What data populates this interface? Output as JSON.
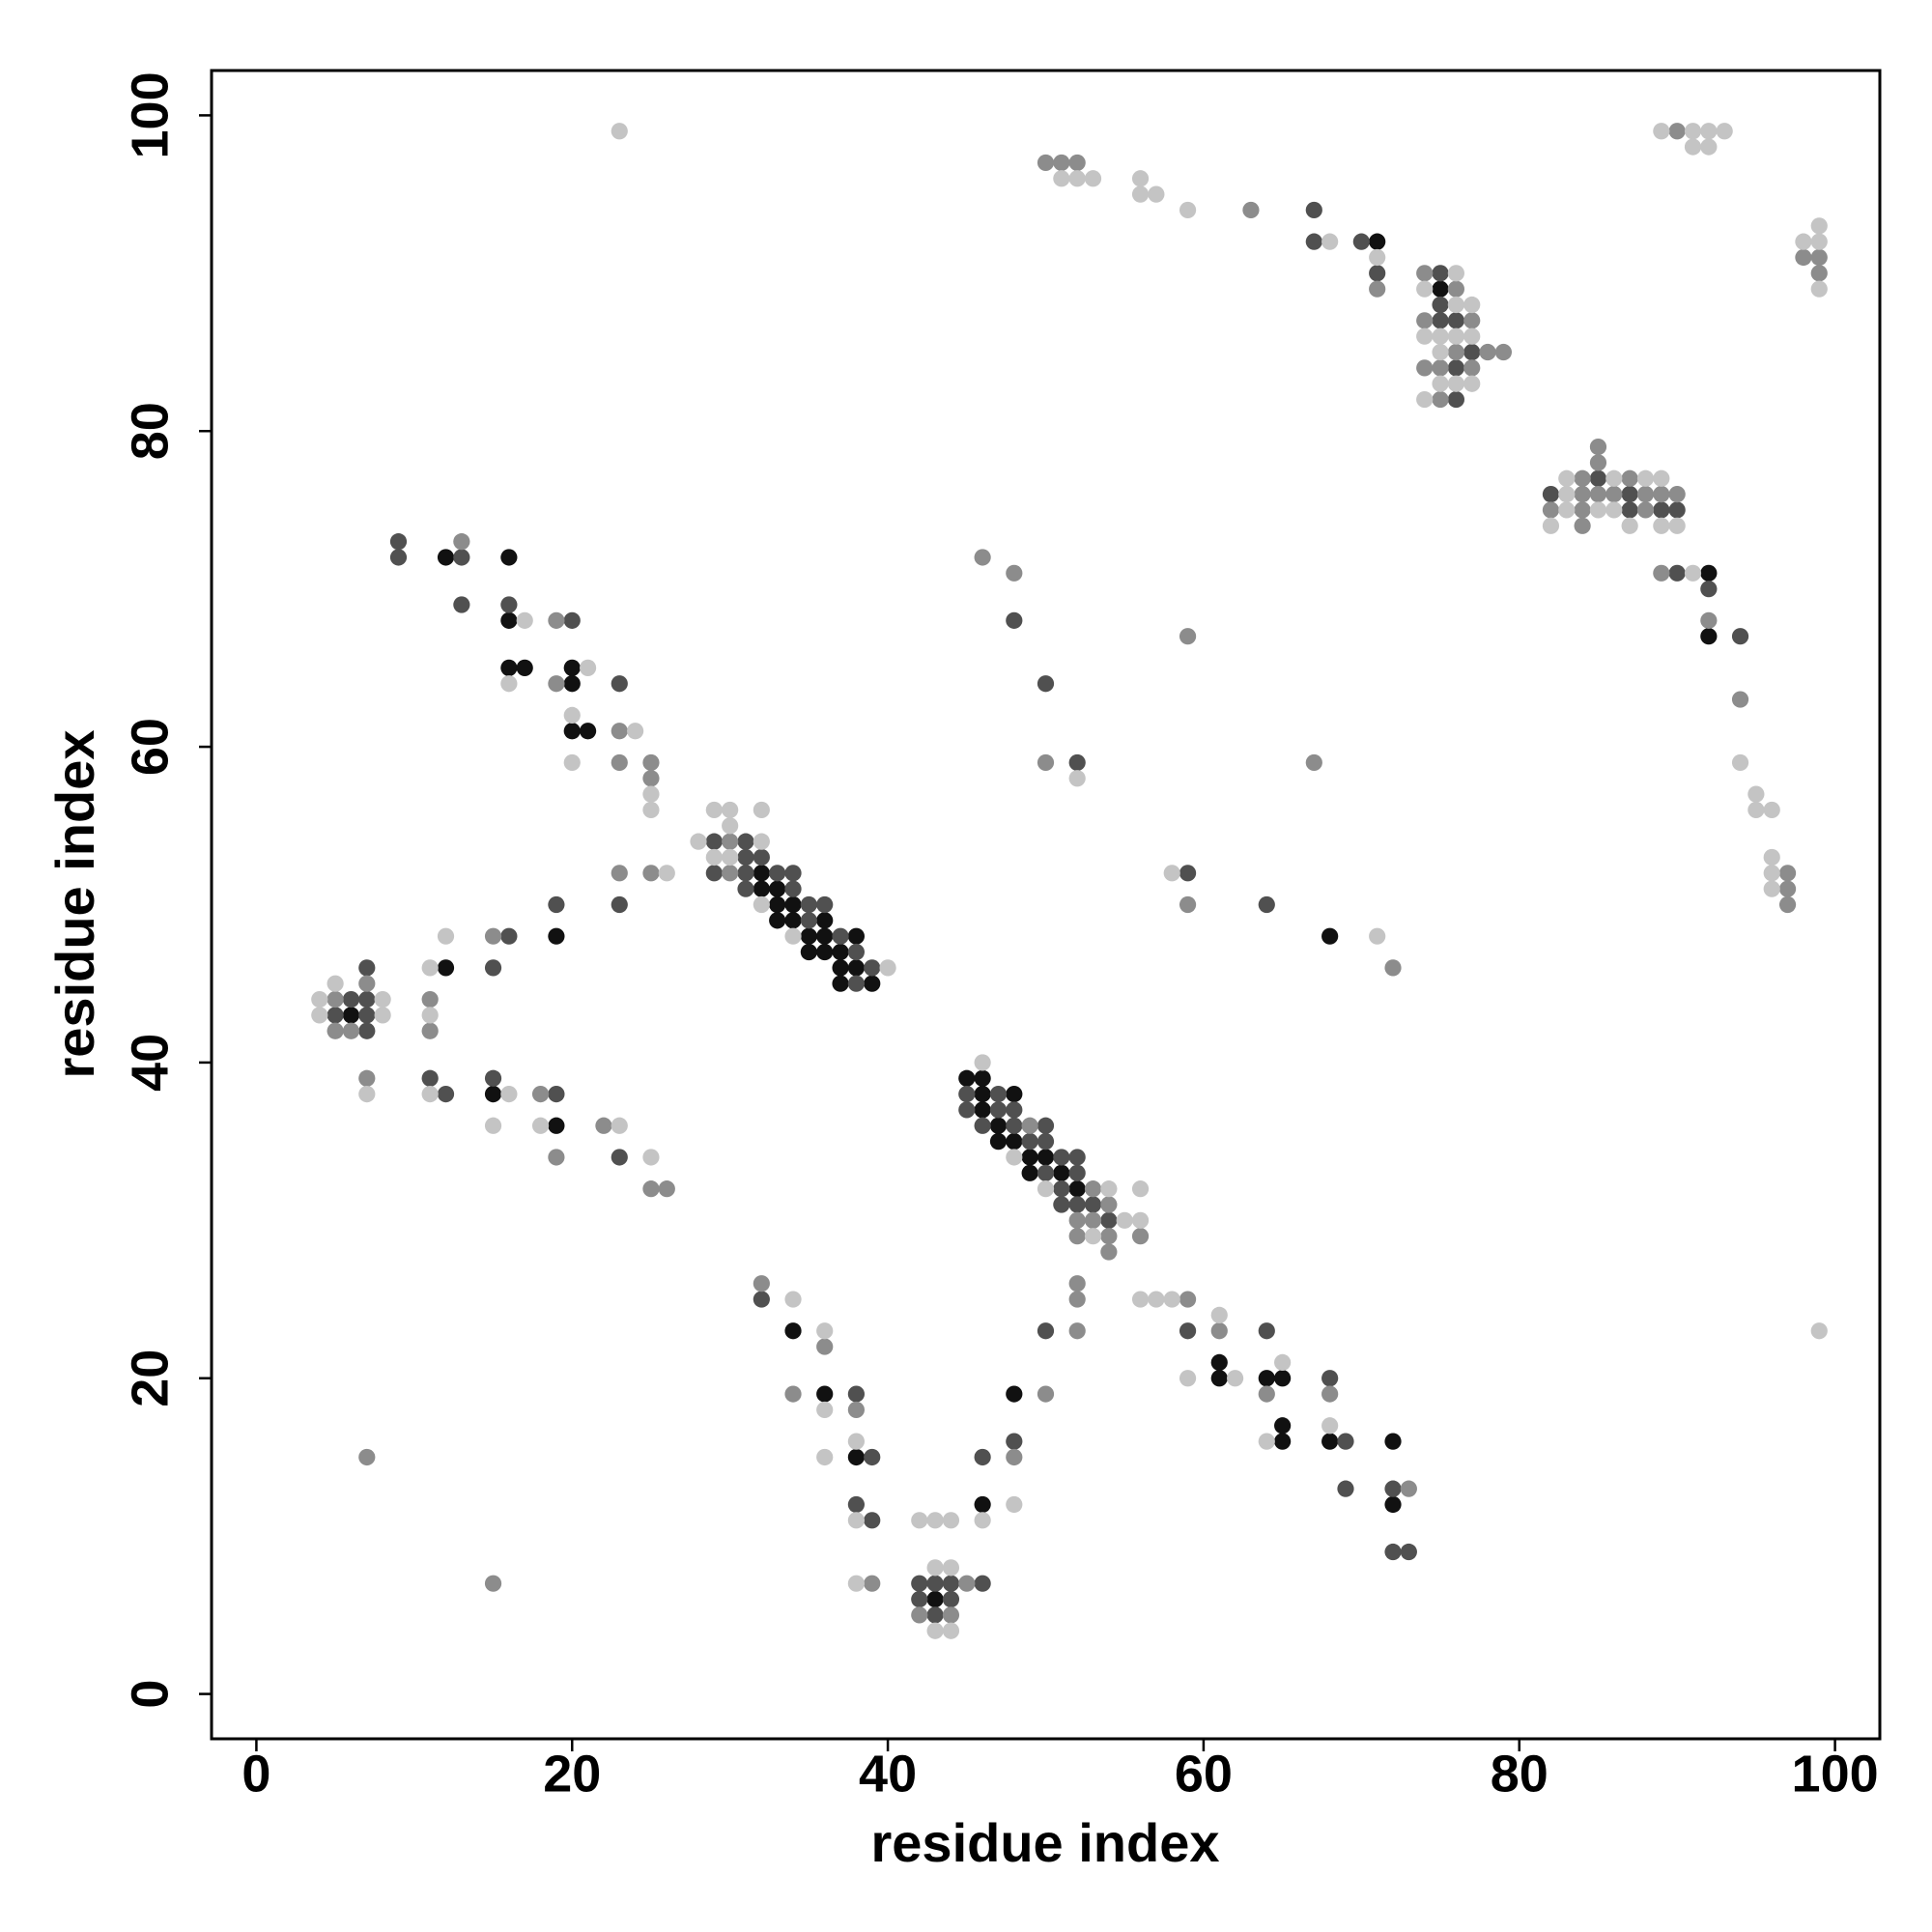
{
  "chart_data": {
    "type": "scatter",
    "xlabel": "residue index",
    "ylabel": "residue index",
    "xlim": [
      -2.84,
      102.84
    ],
    "ylim": [
      -2.84,
      102.84
    ],
    "xticks": [
      0,
      20,
      40,
      60,
      80,
      100
    ],
    "yticks": [
      0,
      20,
      40,
      60,
      80,
      100
    ],
    "grid": false,
    "series": [
      {
        "color": "#111111",
        "x": [
          71,
          75,
          12,
          16,
          92,
          16,
          92,
          16,
          17,
          20,
          20,
          20,
          21,
          32,
          32,
          33,
          33,
          34,
          33,
          34,
          36,
          19,
          35,
          36,
          38,
          68,
          35,
          36,
          37,
          12,
          37,
          38,
          37,
          39,
          6,
          45,
          46,
          15,
          46,
          48,
          46,
          19,
          47,
          47,
          48,
          49,
          50,
          49,
          51,
          52,
          34,
          61,
          61,
          64,
          65,
          36,
          48,
          65,
          65,
          68,
          72,
          38,
          46,
          72,
          43
        ],
        "values": [
          92,
          89,
          72,
          72,
          71,
          68,
          67,
          65,
          65,
          65,
          64,
          61,
          61,
          52,
          51,
          51,
          50,
          50,
          49,
          49,
          49,
          48,
          48,
          48,
          48,
          48,
          47,
          47,
          47,
          46,
          46,
          46,
          45,
          45,
          43,
          39,
          39,
          38,
          38,
          38,
          37,
          36,
          36,
          35,
          35,
          34,
          34,
          33,
          33,
          32,
          23,
          21,
          20,
          20,
          20,
          19,
          19,
          17,
          16,
          16,
          16,
          15,
          12,
          12,
          6
        ]
      },
      {
        "color": "#505050",
        "x": [
          67,
          67,
          70,
          71,
          75,
          75,
          75,
          76,
          77,
          76,
          76,
          85,
          82,
          87,
          87,
          89,
          90,
          9,
          9,
          13,
          90,
          92,
          13,
          16,
          20,
          48,
          94,
          23,
          50,
          52,
          29,
          31,
          31,
          32,
          29,
          31,
          33,
          34,
          59,
          31,
          34,
          19,
          23,
          35,
          36,
          64,
          35,
          16,
          37,
          38,
          7,
          15,
          39,
          38,
          6,
          7,
          5,
          7,
          7,
          11,
          15,
          12,
          19,
          45,
          47,
          45,
          47,
          48,
          46,
          48,
          50,
          49,
          50,
          23,
          51,
          52,
          50,
          52,
          51,
          51,
          52,
          53,
          54,
          32,
          50,
          59,
          64,
          68,
          38,
          39,
          46,
          48,
          69,
          69,
          72,
          38,
          39,
          72,
          73,
          42,
          43,
          44,
          46,
          42,
          44,
          43
        ],
        "values": [
          94,
          92,
          92,
          90,
          90,
          88,
          87,
          87,
          85,
          84,
          82,
          77,
          76,
          76,
          75,
          75,
          75,
          73,
          72,
          72,
          71,
          70,
          69,
          69,
          68,
          68,
          67,
          64,
          64,
          59,
          54,
          54,
          53,
          53,
          52,
          52,
          52,
          52,
          52,
          51,
          51,
          50,
          50,
          50,
          50,
          50,
          49,
          48,
          48,
          47,
          46,
          46,
          46,
          45,
          44,
          44,
          43,
          43,
          42,
          39,
          39,
          38,
          38,
          38,
          38,
          37,
          37,
          37,
          36,
          36,
          36,
          35,
          35,
          34,
          34,
          34,
          33,
          33,
          32,
          31,
          31,
          31,
          30,
          25,
          23,
          23,
          23,
          20,
          19,
          15,
          15,
          16,
          16,
          13,
          13,
          12,
          11,
          9,
          9,
          7,
          7,
          7,
          7,
          6,
          6,
          5
        ]
      },
      {
        "color": "#8c8c8c",
        "x": [
          90,
          50,
          51,
          52,
          63,
          98,
          99,
          74,
          99,
          71,
          76,
          74,
          77,
          76,
          78,
          79,
          74,
          75,
          77,
          75,
          85,
          85,
          84,
          87,
          84,
          85,
          86,
          88,
          89,
          90,
          82,
          84,
          88,
          84,
          13,
          46,
          48,
          89,
          19,
          92,
          59,
          19,
          94,
          23,
          23,
          25,
          50,
          67,
          25,
          30,
          23,
          25,
          30,
          97,
          97,
          59,
          97,
          15,
          72,
          7,
          5,
          11,
          5,
          6,
          11,
          7,
          18,
          22,
          49,
          19,
          25,
          26,
          53,
          54,
          52,
          53,
          52,
          54,
          56,
          54,
          32,
          52,
          52,
          59,
          36,
          52,
          61,
          34,
          50,
          64,
          68,
          38,
          7,
          48,
          73,
          15,
          39,
          45,
          42,
          44
        ],
        "values": [
          99,
          97,
          97,
          97,
          94,
          91,
          91,
          90,
          90,
          89,
          89,
          87,
          87,
          85,
          85,
          85,
          84,
          84,
          84,
          82,
          79,
          78,
          77,
          77,
          76,
          76,
          76,
          76,
          76,
          76,
          75,
          75,
          75,
          74,
          73,
          72,
          71,
          71,
          68,
          68,
          67,
          64,
          63,
          61,
          59,
          59,
          59,
          59,
          58,
          54,
          52,
          52,
          52,
          52,
          51,
          50,
          50,
          48,
          46,
          45,
          44,
          44,
          42,
          42,
          42,
          39,
          38,
          36,
          36,
          34,
          32,
          32,
          32,
          31,
          30,
          30,
          29,
          29,
          29,
          28,
          26,
          26,
          25,
          25,
          22,
          23,
          23,
          19,
          19,
          19,
          19,
          18,
          15,
          15,
          13,
          7,
          7,
          7,
          5,
          5
        ]
      },
      {
        "color": "#c4c4c4",
        "x": [
          23,
          89,
          91,
          92,
          93,
          91,
          92,
          51,
          52,
          53,
          56,
          56,
          57,
          59,
          99,
          68,
          98,
          99,
          71,
          76,
          74,
          99,
          76,
          77,
          74,
          75,
          76,
          77,
          75,
          75,
          76,
          77,
          74,
          83,
          86,
          88,
          89,
          83,
          83,
          85,
          86,
          82,
          87,
          89,
          90,
          91,
          17,
          21,
          16,
          20,
          24,
          20,
          94,
          52,
          25,
          95,
          25,
          29,
          30,
          32,
          95,
          96,
          30,
          28,
          32,
          29,
          30,
          96,
          26,
          58,
          96,
          96,
          32,
          12,
          34,
          71,
          11,
          40,
          5,
          4,
          8,
          4,
          8,
          11,
          46,
          7,
          11,
          16,
          15,
          18,
          23,
          25,
          48,
          50,
          54,
          56,
          55,
          56,
          53,
          34,
          56,
          57,
          58,
          61,
          99,
          36,
          65,
          59,
          62,
          36,
          68,
          38,
          64,
          36,
          48,
          38,
          42,
          43,
          44,
          46,
          43,
          44,
          38,
          43,
          44
        ],
        "values": [
          99,
          99,
          99,
          99,
          99,
          98,
          98,
          96,
          96,
          96,
          96,
          95,
          95,
          94,
          93,
          92,
          92,
          92,
          91,
          90,
          89,
          89,
          88,
          88,
          86,
          86,
          86,
          86,
          85,
          83,
          83,
          83,
          82,
          77,
          77,
          77,
          77,
          76,
          75,
          75,
          75,
          74,
          74,
          74,
          74,
          71,
          68,
          65,
          64,
          62,
          61,
          59,
          59,
          58,
          57,
          57,
          56,
          56,
          56,
          56,
          56,
          56,
          55,
          54,
          54,
          53,
          53,
          53,
          52,
          52,
          52,
          51,
          50,
          48,
          48,
          48,
          46,
          46,
          45,
          44,
          44,
          43,
          43,
          43,
          40,
          38,
          38,
          38,
          36,
          36,
          36,
          34,
          34,
          32,
          32,
          32,
          30,
          30,
          29,
          25,
          25,
          25,
          25,
          24,
          23,
          23,
          21,
          20,
          20,
          18,
          17,
          16,
          16,
          15,
          12,
          11,
          11,
          11,
          11,
          11,
          8,
          8,
          7,
          4,
          4
        ]
      }
    ]
  }
}
